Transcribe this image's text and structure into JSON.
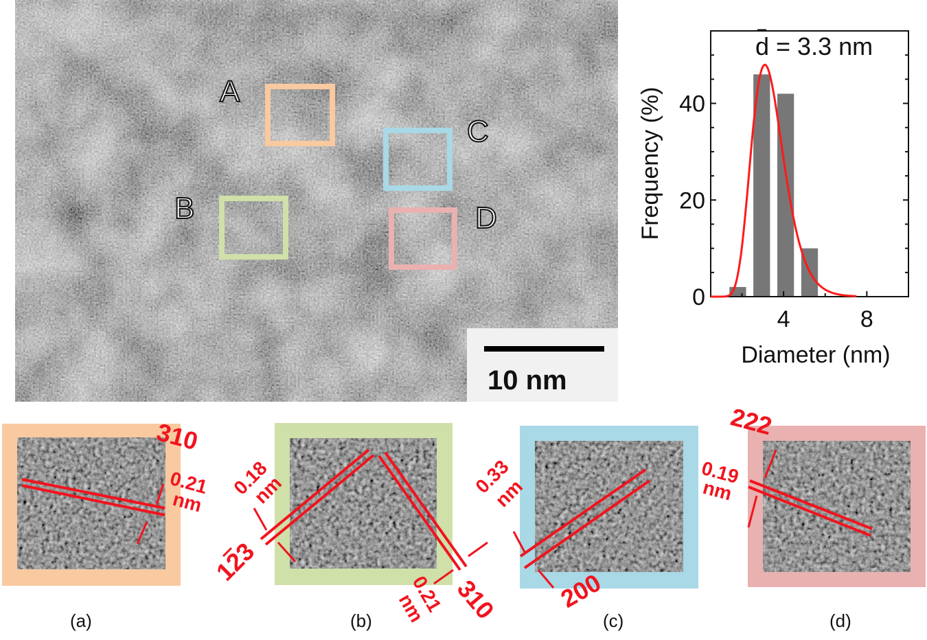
{
  "tem_image": {
    "region_labels": [
      "A",
      "B",
      "C",
      "D"
    ],
    "box_colors": {
      "A": "#f9c9a0",
      "B": "#cfe0a8",
      "C": "#a9d8e6",
      "D": "#e9b1b0"
    },
    "scale_bar_label": "10 nm"
  },
  "panels": [
    {
      "caption": "(a)",
      "plane": "310",
      "spacing": "0.21",
      "unit": "nm"
    },
    {
      "caption": "(b)",
      "plane_1": "123",
      "plane_1_overbar": "1",
      "spacing_1": "0.18",
      "unit_1": "nm",
      "plane_2": "310",
      "spacing_2": "0.21",
      "unit_2": "nm"
    },
    {
      "caption": "(c)",
      "plane": "200",
      "spacing": "0.33",
      "unit": "nm"
    },
    {
      "caption": "(d)",
      "plane": "222",
      "spacing": "0.19",
      "unit": "nm"
    }
  ],
  "chart_data": {
    "type": "bar",
    "title": "",
    "annotation": "d = 3.3 nm",
    "xlabel": "Diameter (nm)",
    "ylabel": "Frequency (%)",
    "xlim": [
      0.5,
      10
    ],
    "ylim": [
      0,
      55
    ],
    "xticks": [
      4,
      8
    ],
    "yticks": [
      0,
      20,
      40
    ],
    "bars": {
      "x": [
        1.8,
        2.95,
        4.1,
        5.25
      ],
      "values": [
        2,
        46,
        42,
        10
      ],
      "width": 0.8,
      "color": "#777777"
    },
    "fit": {
      "type": "lognormal",
      "mean": 3.3,
      "peak": 48,
      "color": "#ff1a1a"
    }
  }
}
